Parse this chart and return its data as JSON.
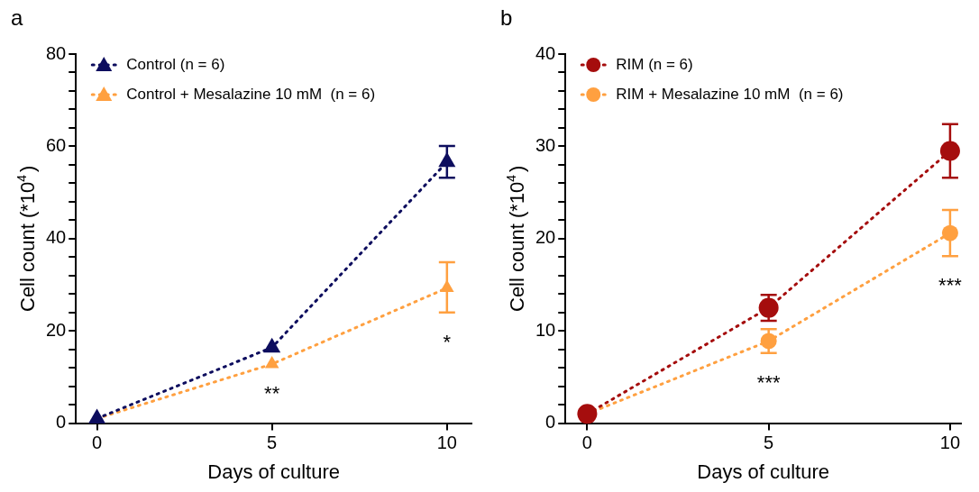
{
  "chart_data": [
    {
      "type": "line",
      "title": "a",
      "xlabel": "Days of culture",
      "ylabel": "Cell count (*10$^{4}$)",
      "x": [
        0,
        5,
        10
      ],
      "series": [
        {
          "name": "Control (n = 6)",
          "color": "#0d0d5e",
          "values": [
            1,
            16.4,
            56.6
          ],
          "errors": [
            null,
            null,
            [
              53.2,
              60.1
            ]
          ]
        },
        {
          "name": "Control + Mesalazine 10 mM  (n = 6)",
          "color": "#ffa040",
          "values": [
            1,
            12.8,
            29.3
          ],
          "errors": [
            null,
            null,
            [
              24.0,
              34.9
            ]
          ]
        }
      ],
      "xlim": [
        -0.6,
        10.7
      ],
      "xticks": [
        0,
        5,
        10
      ],
      "ylim": [
        0,
        80
      ],
      "yticks": [
        0,
        {
          "value": 4,
          "label": null
        },
        {
          "value": 8,
          "label": null
        },
        {
          "value": 12,
          "label": null
        },
        {
          "value": 16,
          "label": null
        },
        20,
        {
          "value": 24,
          "label": null
        },
        {
          "value": 28,
          "label": null
        },
        {
          "value": 32,
          "label": null
        },
        {
          "value": 36,
          "label": null
        },
        40,
        {
          "value": 44,
          "label": null
        },
        {
          "value": 48,
          "label": null
        },
        {
          "value": 52,
          "label": null
        },
        {
          "value": 56,
          "label": null
        },
        60,
        {
          "value": 64,
          "label": null
        },
        {
          "value": 68,
          "label": null
        },
        {
          "value": 72,
          "label": null
        },
        {
          "value": 76,
          "label": null
        },
        80
      ],
      "annotations": [
        "**",
        "*"
      ],
      "legend": "top left",
      "grid": false,
      "marker": "triangle",
      "line_style": "dotted"
    },
    {
      "type": "line",
      "title": "b",
      "xlabel": "Days of culture",
      "ylabel": "Cell count (*10$^{4}$)",
      "x": [
        0,
        5,
        10
      ],
      "series": [
        {
          "name": "RIM (n = 6)",
          "color": "#a50d0d",
          "values": [
            1,
            12.5,
            29.5
          ],
          "errors": [
            null,
            [
              11.1,
              13.9
            ],
            [
              26.6,
              32.4
            ]
          ]
        },
        {
          "name": "RIM + Mesalazine 10 mM  (n = 6)",
          "color": "#ffa040",
          "values": [
            1,
            8.9,
            20.6
          ],
          "errors": [
            null,
            [
              7.6,
              10.2
            ],
            [
              18.1,
              23.1
            ]
          ]
        }
      ],
      "xlim": [
        -0.6,
        10.3
      ],
      "xticks": [
        0,
        5,
        10
      ],
      "ylim": [
        0,
        40
      ],
      "yticks": [
        0,
        {
          "value": 2,
          "label": null
        },
        {
          "value": 4,
          "label": null
        },
        {
          "value": 6,
          "label": null
        },
        {
          "value": 8,
          "label": null
        },
        10,
        {
          "value": 12,
          "label": null
        },
        {
          "value": 14,
          "label": null
        },
        {
          "value": 16,
          "label": null
        },
        {
          "value": 18,
          "label": null
        },
        20,
        {
          "value": 22,
          "label": null
        },
        {
          "value": 24,
          "label": null
        },
        {
          "value": 26,
          "label": null
        },
        {
          "value": 28,
          "label": null
        },
        30,
        {
          "value": 32,
          "label": null
        },
        {
          "value": 34,
          "label": null
        },
        {
          "value": 36,
          "label": null
        },
        {
          "value": 38,
          "label": null
        },
        40
      ],
      "annotations": [
        "***",
        "***"
      ],
      "legend": "top left",
      "grid": false,
      "marker": "circle",
      "line_style": "dotted"
    }
  ]
}
